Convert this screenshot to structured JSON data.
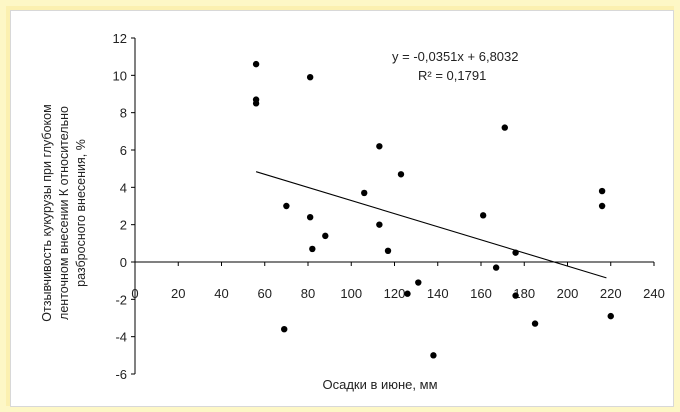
{
  "chart_data": {
    "type": "scatter",
    "ylabel": "Отзывчивость кукурузы при глубоком ленточном внесении К относительно разбросного внесения, %",
    "ylabel_lines": [
      "Отзывчивость кукурузы при глубоком",
      "ленточном внесении К относительно",
      "разбросного внесения, %"
    ],
    "xlabel": "Осадки в июне, мм",
    "xlim": [
      0,
      240
    ],
    "ylim": [
      -6,
      12
    ],
    "xticks": [
      "0",
      "20",
      "40",
      "60",
      "80",
      "100",
      "120",
      "140",
      "160",
      "180",
      "200",
      "220",
      "240"
    ],
    "yticks": [
      "-6",
      "-4",
      "-2",
      "0",
      "2",
      "4",
      "6",
      "8",
      "10",
      "12"
    ],
    "grid": false,
    "trendline": {
      "slope": -0.0351,
      "intercept": 6.8032,
      "x_start": 56,
      "x_end": 218
    },
    "equation": "y = -0,0351x + 6,8032",
    "r_squared": "R² = 0,1791",
    "points": [
      {
        "x": 56,
        "y": 10.6
      },
      {
        "x": 56,
        "y": 8.7
      },
      {
        "x": 56,
        "y": 8.5
      },
      {
        "x": 70,
        "y": 3.0
      },
      {
        "x": 69,
        "y": -3.6
      },
      {
        "x": 81,
        "y": 9.9
      },
      {
        "x": 81,
        "y": 2.4
      },
      {
        "x": 82,
        "y": 0.7
      },
      {
        "x": 88,
        "y": 1.4
      },
      {
        "x": 106,
        "y": 3.7
      },
      {
        "x": 113,
        "y": 6.2
      },
      {
        "x": 113,
        "y": 2.0
      },
      {
        "x": 117,
        "y": 0.6
      },
      {
        "x": 123,
        "y": 4.7
      },
      {
        "x": 126,
        "y": -1.7
      },
      {
        "x": 131,
        "y": -1.1
      },
      {
        "x": 138,
        "y": -5.0
      },
      {
        "x": 161,
        "y": 2.5
      },
      {
        "x": 167,
        "y": -0.3
      },
      {
        "x": 171,
        "y": 7.2
      },
      {
        "x": 176,
        "y": 0.5
      },
      {
        "x": 176,
        "y": -1.8
      },
      {
        "x": 185,
        "y": -3.3
      },
      {
        "x": 216,
        "y": 3.8
      },
      {
        "x": 216,
        "y": 3.0
      },
      {
        "x": 220,
        "y": -2.9
      }
    ]
  }
}
